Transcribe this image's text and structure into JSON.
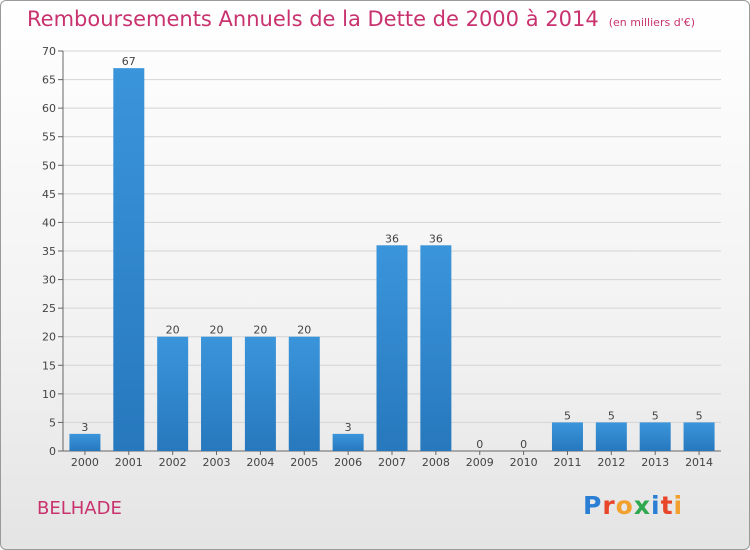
{
  "title": "Remboursements Annuels de la Dette de 2000 à 2014",
  "unit_note": "(en milliers d'€)",
  "commune": "BELHADE",
  "logo": {
    "text": "Proxiti",
    "letter_colors": [
      "#2a7fd4",
      "#e8462b",
      "#f2a12e",
      "#2fa84f",
      "#2a7fd4",
      "#e8462b",
      "#f2a12e"
    ]
  },
  "colors": {
    "bar": "#3b95db",
    "bar_dark": "#2778bd",
    "title": "#c8326e",
    "axis": "#666666",
    "grid": "#d4d4d4"
  },
  "chart_data": {
    "type": "bar",
    "title": "Remboursements Annuels de la Dette de 2000 à 2014",
    "categories": [
      "2000",
      "2001",
      "2002",
      "2003",
      "2004",
      "2005",
      "2006",
      "2007",
      "2008",
      "2009",
      "2010",
      "2011",
      "2012",
      "2013",
      "2014"
    ],
    "values": [
      3,
      67,
      20,
      20,
      20,
      20,
      3,
      36,
      36,
      0,
      0,
      5,
      5,
      5,
      5
    ],
    "yticks": [
      0,
      5,
      10,
      15,
      20,
      25,
      30,
      35,
      40,
      45,
      50,
      55,
      60,
      65,
      70
    ],
    "ylim": [
      0,
      70
    ],
    "grid": true,
    "data_labels": true
  }
}
